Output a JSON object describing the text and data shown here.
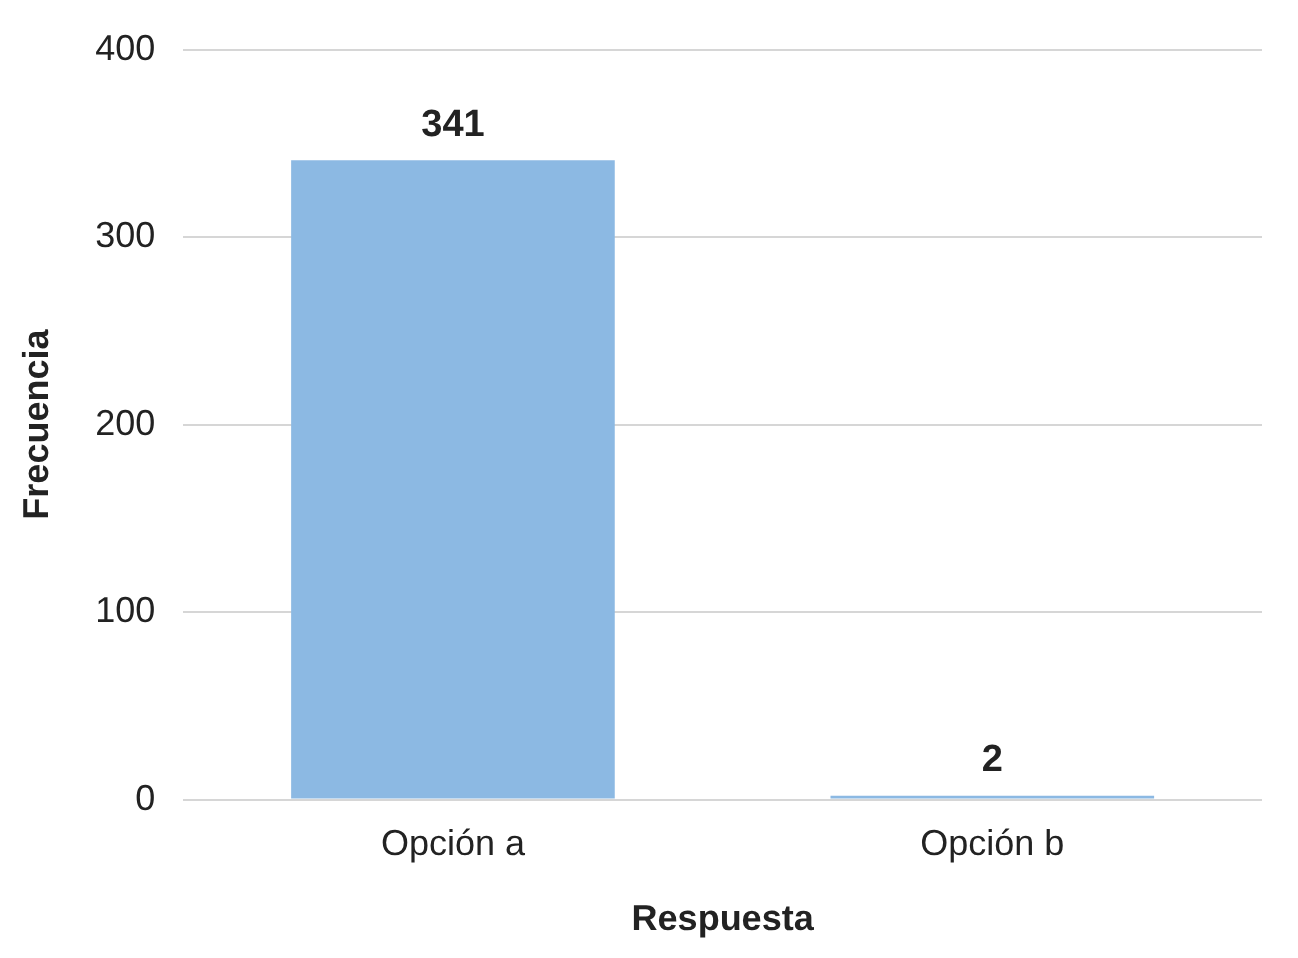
{
  "chart_data": {
    "type": "bar",
    "xlabel": "Respuesta",
    "ylabel": "Frecuencia",
    "categories": [
      "Opción a",
      "Opción b"
    ],
    "values": [
      341,
      2
    ],
    "color": "#8cb9e3",
    "ylim": [
      0,
      400
    ],
    "yticks": [
      0,
      100,
      200,
      300,
      400
    ],
    "grid": "y",
    "data_labels": true,
    "legend": false
  }
}
